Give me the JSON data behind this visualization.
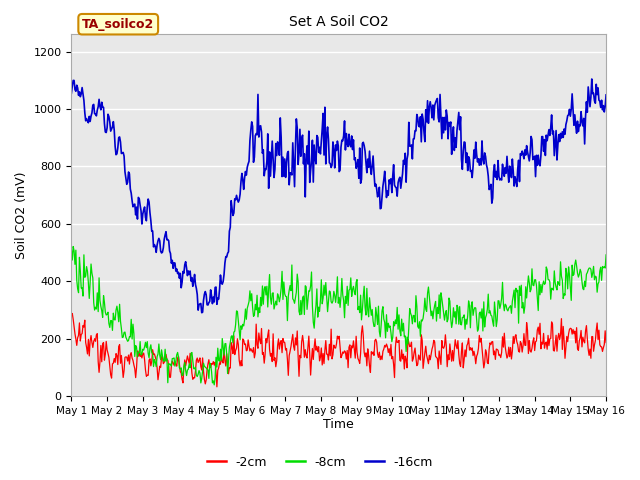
{
  "title": "Set A Soil CO2",
  "xlabel": "Time",
  "ylabel": "Soil CO2 (mV)",
  "ylim": [
    0,
    1260
  ],
  "yticks": [
    0,
    200,
    400,
    600,
    800,
    1000,
    1200
  ],
  "legend_label": "TA_soilco2",
  "series": {
    "2cm": {
      "color": "#ff0000",
      "label": "-2cm"
    },
    "8cm": {
      "color": "#00dd00",
      "label": "-8cm"
    },
    "16cm": {
      "color": "#0000cc",
      "label": "-16cm"
    }
  },
  "fig_bg_color": "#ffffff",
  "plot_bg_color": "#e8e8e8",
  "n_points": 600,
  "x_start": 0,
  "x_end": 15,
  "xtick_positions": [
    0,
    1,
    2,
    3,
    4,
    5,
    6,
    7,
    8,
    9,
    10,
    11,
    12,
    13,
    14,
    15
  ],
  "xtick_labels": [
    "May 1",
    "May 2",
    "May 3",
    "May 4",
    "May 5",
    "May 6",
    "May 7",
    "May 8",
    "May 9",
    "May 10",
    "May 11",
    "May 12",
    "May 13",
    "May 14",
    "May 15",
    "May 16"
  ],
  "legend_box_color": "#ffffcc",
  "legend_box_edge": "#cc8800",
  "legend_text_color": "#990000"
}
